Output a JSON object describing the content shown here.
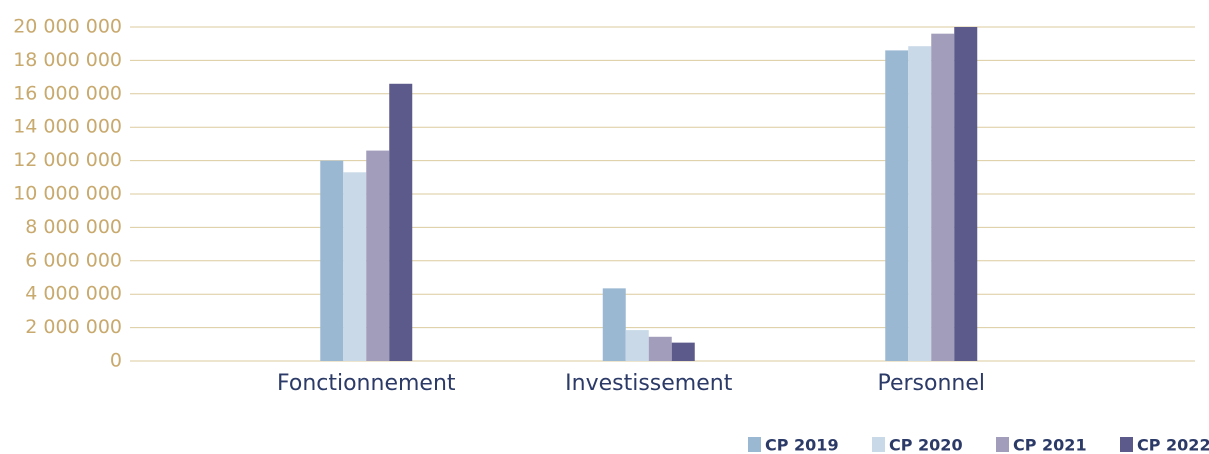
{
  "chart_data": {
    "type": "bar",
    "categories": [
      "Fonctionnement",
      "Investissement",
      "Personnel"
    ],
    "series": [
      {
        "name": "CP 2019",
        "color": "#9bb8d3",
        "values": [
          12000000,
          4350000,
          18600000
        ]
      },
      {
        "name": "CP 2020",
        "color": "#c9d9e8",
        "values": [
          11300000,
          1850000,
          18850000
        ]
      },
      {
        "name": "CP 2021",
        "color": "#a29dbb",
        "values": [
          12600000,
          1450000,
          19600000
        ]
      },
      {
        "name": "CP 2022",
        "color": "#5b5a8a",
        "values": [
          16600000,
          1100000,
          20000000
        ]
      }
    ],
    "ylim": [
      0,
      20000000
    ],
    "yticks": [
      0,
      {
        "value": 2000000,
        "label": "2 000 000"
      },
      {
        "value": 4000000,
        "label": "4 000 000"
      },
      {
        "value": 6000000,
        "label": "6 000 000"
      },
      {
        "value": 8000000,
        "label": "8 000 000"
      },
      {
        "value": 10000000,
        "label": "10 000 000"
      },
      {
        "value": 12000000,
        "label": "12 000 000"
      },
      {
        "value": 14000000,
        "label": "14 000 000"
      },
      {
        "value": 16000000,
        "label": "16 000 000"
      },
      {
        "value": 18000000,
        "label": "18 000 000"
      },
      {
        "value": 20000000,
        "label": "20 000 000"
      }
    ],
    "grid": true,
    "legend": "bottom-right"
  }
}
